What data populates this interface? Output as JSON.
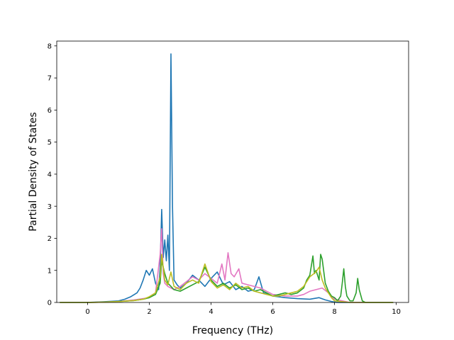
{
  "chart_data": {
    "type": "line",
    "title": "",
    "xlabel": "Frequency (THz)",
    "ylabel": "Partial Density of States",
    "xlim": [
      -1.0,
      10.4
    ],
    "ylim": [
      0,
      8.15
    ],
    "xticks": [
      0,
      2,
      4,
      6,
      8,
      10
    ],
    "yticks": [
      0,
      1,
      2,
      3,
      4,
      5,
      6,
      7,
      8
    ],
    "grid": false,
    "legend": "none",
    "series": [
      {
        "color": "#1f77b4",
        "x": [
          -0.9,
          0.0,
          0.5,
          1.0,
          1.2,
          1.4,
          1.6,
          1.7,
          1.8,
          1.9,
          2.0,
          2.1,
          2.2,
          2.3,
          2.35,
          2.4,
          2.45,
          2.5,
          2.55,
          2.6,
          2.65,
          2.7,
          2.75,
          2.8,
          2.9,
          3.0,
          3.2,
          3.4,
          3.6,
          3.8,
          4.0,
          4.2,
          4.4,
          4.6,
          4.8,
          5.0,
          5.2,
          5.4,
          5.55,
          5.7,
          6.0,
          6.4,
          6.8,
          7.2,
          7.5,
          7.7,
          7.9,
          8.1,
          8.5,
          9.0,
          9.9
        ],
        "y": [
          0,
          0,
          0.02,
          0.05,
          0.1,
          0.18,
          0.3,
          0.45,
          0.7,
          1.0,
          0.85,
          1.05,
          0.6,
          0.4,
          1.1,
          2.9,
          1.4,
          1.95,
          1.3,
          2.1,
          1.0,
          7.75,
          3.0,
          0.7,
          0.55,
          0.45,
          0.6,
          0.85,
          0.7,
          0.5,
          0.75,
          0.95,
          0.55,
          0.65,
          0.4,
          0.5,
          0.35,
          0.4,
          0.8,
          0.3,
          0.2,
          0.15,
          0.12,
          0.1,
          0.15,
          0.08,
          0.03,
          0.0,
          0,
          0,
          0
        ]
      },
      {
        "color": "#e377c2",
        "x": [
          -0.9,
          0.0,
          0.5,
          1.0,
          1.5,
          1.8,
          2.0,
          2.2,
          2.35,
          2.4,
          2.45,
          2.5,
          2.6,
          2.7,
          2.8,
          3.0,
          3.2,
          3.4,
          3.6,
          3.8,
          4.0,
          4.2,
          4.35,
          4.45,
          4.55,
          4.65,
          4.75,
          4.9,
          5.0,
          5.2,
          5.4,
          5.6,
          5.8,
          6.0,
          6.4,
          6.8,
          7.0,
          7.2,
          7.4,
          7.6,
          7.8,
          8.0,
          8.5,
          9.9
        ],
        "y": [
          0,
          0,
          0.01,
          0.03,
          0.08,
          0.12,
          0.15,
          0.3,
          1.5,
          2.3,
          0.9,
          0.6,
          0.5,
          0.45,
          0.4,
          0.5,
          0.65,
          0.8,
          0.7,
          0.9,
          0.75,
          0.6,
          1.2,
          0.7,
          1.55,
          0.9,
          0.8,
          1.05,
          0.6,
          0.55,
          0.5,
          0.45,
          0.35,
          0.25,
          0.2,
          0.2,
          0.25,
          0.35,
          0.4,
          0.45,
          0.3,
          0.1,
          0,
          0
        ]
      },
      {
        "color": "#2ca02c",
        "x": [
          -0.9,
          0.0,
          0.5,
          1.0,
          1.5,
          1.8,
          2.0,
          2.2,
          2.35,
          2.4,
          2.5,
          2.6,
          2.7,
          2.8,
          3.0,
          3.2,
          3.4,
          3.6,
          3.8,
          4.0,
          4.2,
          4.4,
          4.6,
          4.8,
          5.0,
          5.2,
          5.4,
          5.6,
          5.8,
          6.0,
          6.2,
          6.4,
          6.6,
          6.8,
          7.0,
          7.1,
          7.2,
          7.3,
          7.35,
          7.4,
          7.5,
          7.55,
          7.6,
          7.7,
          7.8,
          7.9,
          8.0,
          8.1,
          8.2,
          8.25,
          8.3,
          8.35,
          8.4,
          8.5,
          8.6,
          8.7,
          8.75,
          8.8,
          8.9,
          9.0,
          9.9
        ],
        "y": [
          0,
          0,
          0.01,
          0.03,
          0.06,
          0.1,
          0.15,
          0.25,
          0.6,
          1.3,
          0.9,
          0.6,
          0.5,
          0.4,
          0.35,
          0.45,
          0.55,
          0.65,
          1.1,
          0.7,
          0.5,
          0.6,
          0.45,
          0.55,
          0.4,
          0.45,
          0.35,
          0.4,
          0.3,
          0.2,
          0.25,
          0.3,
          0.25,
          0.3,
          0.45,
          0.7,
          0.85,
          1.45,
          0.9,
          1.0,
          0.7,
          1.5,
          1.35,
          0.6,
          0.35,
          0.2,
          0.15,
          0.05,
          0.2,
          0.6,
          1.05,
          0.5,
          0.2,
          0.05,
          0.05,
          0.3,
          0.75,
          0.4,
          0.05,
          0,
          0
        ]
      },
      {
        "color": "#bcbd22",
        "x": [
          -0.9,
          0.0,
          0.5,
          1.0,
          1.5,
          1.8,
          2.0,
          2.2,
          2.35,
          2.4,
          2.5,
          2.6,
          2.7,
          2.8,
          3.0,
          3.2,
          3.4,
          3.6,
          3.8,
          4.0,
          4.2,
          4.4,
          4.6,
          4.8,
          5.0,
          5.2,
          5.4,
          5.6,
          5.8,
          6.0,
          6.2,
          6.4,
          6.6,
          6.8,
          7.0,
          7.2,
          7.4,
          7.5,
          7.6,
          7.7,
          7.8,
          7.9,
          8.0,
          8.5,
          9.9
        ],
        "y": [
          0,
          0,
          0.01,
          0.03,
          0.06,
          0.1,
          0.18,
          0.3,
          0.8,
          1.5,
          0.7,
          0.55,
          0.95,
          0.5,
          0.4,
          0.6,
          0.7,
          0.6,
          1.2,
          0.65,
          0.45,
          0.55,
          0.4,
          0.6,
          0.45,
          0.5,
          0.35,
          0.3,
          0.25,
          0.2,
          0.2,
          0.25,
          0.3,
          0.35,
          0.5,
          0.8,
          0.95,
          1.1,
          0.7,
          0.45,
          0.3,
          0.15,
          0.05,
          0,
          0
        ]
      }
    ]
  }
}
